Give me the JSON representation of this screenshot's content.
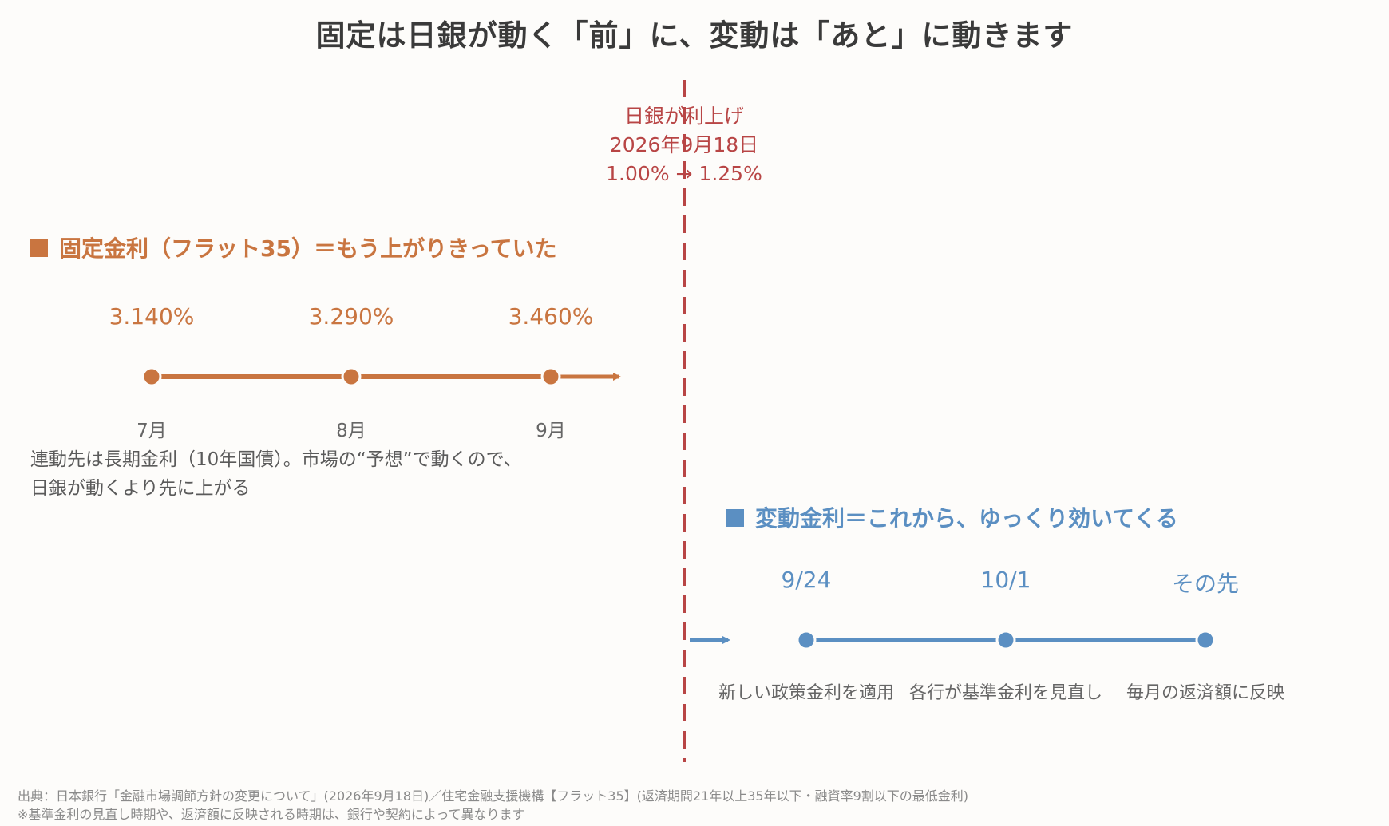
{
  "title": "固定は日銀が動く「前」に、変動は「あと」に動きます",
  "boj_event": {
    "line1": "日銀が利上げ",
    "line2": "2026年9月18日",
    "line3": "1.00% → 1.25%"
  },
  "fixed": {
    "heading": "固定金利（フラット35）＝もう上がりきっていた",
    "points": [
      {
        "rate": "3.140%",
        "month": "7月"
      },
      {
        "rate": "3.290%",
        "month": "8月"
      },
      {
        "rate": "3.460%",
        "month": "9月"
      }
    ],
    "note_line1": "連動先は長期金利（10年国債）。市場の“予想”で動くので、",
    "note_line2": "日銀が動くより先に上がる"
  },
  "variable": {
    "heading": "変動金利＝これから、ゆっくり効いてくる",
    "points": [
      {
        "date": "9/24",
        "desc": "新しい政策金利を適用"
      },
      {
        "date": "10/1",
        "desc": "各行が基準金利を見直し"
      },
      {
        "date": "その先",
        "desc": "毎月の返済額に反映"
      }
    ]
  },
  "footer": {
    "line1": "出典：日本銀行「金融市場調節方針の変更について」(2026年9月18日)／住宅金融支援機構【フラット35】(返済期間21年以上35年以下・融資率9割以下の最低金利)",
    "line2": "※基準金利の見直し時期や、返済額に反映される時期は、銀行や契約によって異なります"
  },
  "colors": {
    "fixed": "#c97540",
    "variable": "#5b8fc2",
    "boj_line": "#b84545",
    "background": "#fdfcfa"
  }
}
